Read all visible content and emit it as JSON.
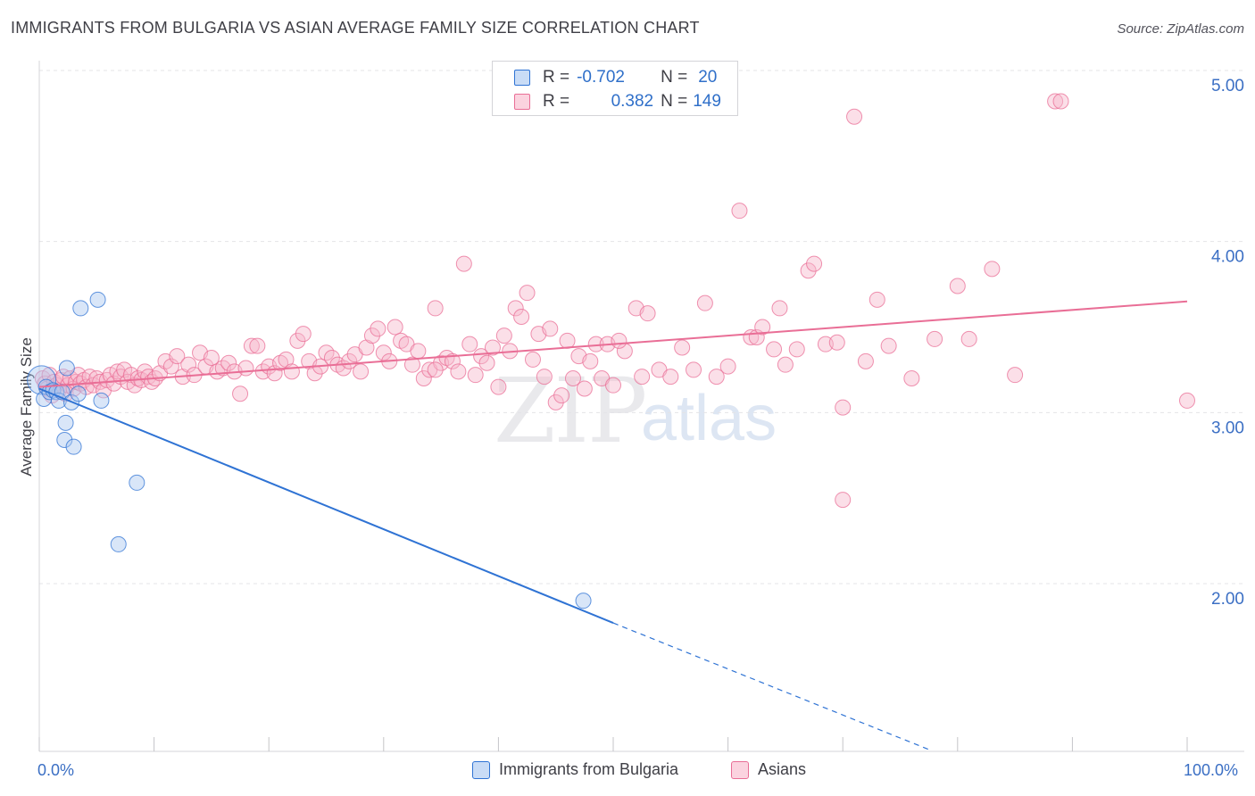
{
  "header": {
    "title": "IMMIGRANTS FROM BULGARIA VS ASIAN AVERAGE FAMILY SIZE CORRELATION CHART",
    "source": "Source: ZipAtlas.com"
  },
  "stats": {
    "rows": [
      {
        "r_label": "R =",
        "r_value": "-0.702",
        "n_label": "N =",
        "n_value": "20",
        "color": "#aac8f0"
      },
      {
        "r_label": "R =",
        "r_value": "0.382",
        "n_label": "N =",
        "n_value": "149",
        "color": "#f6b8cb"
      }
    ]
  },
  "watermark": {
    "zip": "ZIP",
    "atlas": "atlas"
  },
  "legend": {
    "items": [
      {
        "label": "Immigrants from Bulgaria",
        "color": "#aac8f0"
      },
      {
        "label": "Asians",
        "color": "#f6b8cb"
      }
    ]
  },
  "chart_data": {
    "type": "scatter",
    "xlabel": "",
    "ylabel": "Average Family Size",
    "x_tick_labels": [
      "0.0%",
      "100.0%"
    ],
    "y_tick_labels": [
      "2.00",
      "3.00",
      "4.00",
      "5.00"
    ],
    "xlim": [
      0,
      100
    ],
    "ylim": [
      1.1,
      5.1
    ],
    "grid": true,
    "legend_position": "bottom",
    "colors": {
      "blue": "#2f73d4",
      "pink": "#e96e96",
      "blue_fill": "#aac8f0",
      "pink_fill": "#f6b8cb"
    },
    "series": [
      {
        "name": "Immigrants from Bulgaria",
        "points": [
          [
            0.2,
            3.19
          ],
          [
            0.4,
            3.08
          ],
          [
            0.6,
            3.15
          ],
          [
            0.9,
            3.12
          ],
          [
            1.2,
            3.13
          ],
          [
            1.5,
            3.12
          ],
          [
            1.7,
            3.07
          ],
          [
            2.0,
            3.12
          ],
          [
            2.2,
            2.84
          ],
          [
            2.3,
            2.94
          ],
          [
            2.4,
            3.26
          ],
          [
            2.8,
            3.06
          ],
          [
            3.0,
            2.8
          ],
          [
            3.4,
            3.11
          ],
          [
            3.6,
            3.61
          ],
          [
            5.1,
            3.66
          ],
          [
            5.4,
            3.07
          ],
          [
            6.9,
            2.23
          ],
          [
            8.5,
            2.59
          ],
          [
            47.4,
            1.9
          ]
        ],
        "trend": {
          "x": [
            0,
            50
          ],
          "y": [
            3.14,
            1.77
          ]
        },
        "trend_dashed": {
          "x": [
            50,
            77.5
          ],
          "y": [
            1.77,
            1.03
          ]
        }
      },
      {
        "name": "Asians",
        "points": [
          [
            0.3,
            3.2
          ],
          [
            0.5,
            3.17
          ],
          [
            0.7,
            3.14
          ],
          [
            0.9,
            3.22
          ],
          [
            1.1,
            3.1
          ],
          [
            1.3,
            3.18
          ],
          [
            1.5,
            3.16
          ],
          [
            1.7,
            3.13
          ],
          [
            1.9,
            3.19
          ],
          [
            2.1,
            3.21
          ],
          [
            2.3,
            3.11
          ],
          [
            2.5,
            3.16
          ],
          [
            2.7,
            3.2
          ],
          [
            3.0,
            3.14
          ],
          [
            3.2,
            3.18
          ],
          [
            3.4,
            3.22
          ],
          [
            3.6,
            3.17
          ],
          [
            3.9,
            3.19
          ],
          [
            4.1,
            3.15
          ],
          [
            4.4,
            3.21
          ],
          [
            4.7,
            3.16
          ],
          [
            5.0,
            3.2
          ],
          [
            5.3,
            3.18
          ],
          [
            5.6,
            3.13
          ],
          [
            5.9,
            3.19
          ],
          [
            6.2,
            3.22
          ],
          [
            6.5,
            3.17
          ],
          [
            6.8,
            3.24
          ],
          [
            7.1,
            3.21
          ],
          [
            7.4,
            3.25
          ],
          [
            7.7,
            3.18
          ],
          [
            8.0,
            3.22
          ],
          [
            8.3,
            3.16
          ],
          [
            8.6,
            3.2
          ],
          [
            8.9,
            3.19
          ],
          [
            9.2,
            3.24
          ],
          [
            9.5,
            3.21
          ],
          [
            9.8,
            3.18
          ],
          [
            10.1,
            3.2
          ],
          [
            10.5,
            3.23
          ],
          [
            11.0,
            3.3
          ],
          [
            11.5,
            3.27
          ],
          [
            12.0,
            3.33
          ],
          [
            12.5,
            3.21
          ],
          [
            13.0,
            3.28
          ],
          [
            13.5,
            3.22
          ],
          [
            14.0,
            3.35
          ],
          [
            14.5,
            3.27
          ],
          [
            15.0,
            3.32
          ],
          [
            15.5,
            3.24
          ],
          [
            16.0,
            3.26
          ],
          [
            16.5,
            3.29
          ],
          [
            17.0,
            3.24
          ],
          [
            17.5,
            3.11
          ],
          [
            18.0,
            3.26
          ],
          [
            18.5,
            3.39
          ],
          [
            19.0,
            3.39
          ],
          [
            19.5,
            3.24
          ],
          [
            20.0,
            3.27
          ],
          [
            20.5,
            3.23
          ],
          [
            21.0,
            3.29
          ],
          [
            21.5,
            3.31
          ],
          [
            22.0,
            3.24
          ],
          [
            22.5,
            3.42
          ],
          [
            23.0,
            3.46
          ],
          [
            23.5,
            3.3
          ],
          [
            24.0,
            3.23
          ],
          [
            24.5,
            3.27
          ],
          [
            25.0,
            3.35
          ],
          [
            25.5,
            3.32
          ],
          [
            26.0,
            3.28
          ],
          [
            26.5,
            3.26
          ],
          [
            27.0,
            3.3
          ],
          [
            27.5,
            3.34
          ],
          [
            28.0,
            3.24
          ],
          [
            28.5,
            3.38
          ],
          [
            29.0,
            3.45
          ],
          [
            29.5,
            3.49
          ],
          [
            30.0,
            3.35
          ],
          [
            30.5,
            3.3
          ],
          [
            31.0,
            3.5
          ],
          [
            31.5,
            3.42
          ],
          [
            32.0,
            3.4
          ],
          [
            32.5,
            3.28
          ],
          [
            33.0,
            3.36
          ],
          [
            33.5,
            3.2
          ],
          [
            34.0,
            3.25
          ],
          [
            34.5,
            3.61
          ],
          [
            35.0,
            3.29
          ],
          [
            35.5,
            3.32
          ],
          [
            36.0,
            3.3
          ],
          [
            36.5,
            3.24
          ],
          [
            37.0,
            3.87
          ],
          [
            37.5,
            3.4
          ],
          [
            38.0,
            3.22
          ],
          [
            38.5,
            3.33
          ],
          [
            39.0,
            3.29
          ],
          [
            39.5,
            3.38
          ],
          [
            40.0,
            3.15
          ],
          [
            40.5,
            3.45
          ],
          [
            41.0,
            3.36
          ],
          [
            41.5,
            3.61
          ],
          [
            42.0,
            3.56
          ],
          [
            42.5,
            3.7
          ],
          [
            43.0,
            3.31
          ],
          [
            43.5,
            3.46
          ],
          [
            44.0,
            3.21
          ],
          [
            44.5,
            3.49
          ],
          [
            45.0,
            3.06
          ],
          [
            45.5,
            3.1
          ],
          [
            46.0,
            3.42
          ],
          [
            46.5,
            3.2
          ],
          [
            47.0,
            3.33
          ],
          [
            47.5,
            3.14
          ],
          [
            48.0,
            3.3
          ],
          [
            48.5,
            3.4
          ],
          [
            49.0,
            3.2
          ],
          [
            49.5,
            3.4
          ],
          [
            50.0,
            3.16
          ],
          [
            51.0,
            3.36
          ],
          [
            52.0,
            3.61
          ],
          [
            52.5,
            3.21
          ],
          [
            53.0,
            3.58
          ],
          [
            54.0,
            3.25
          ],
          [
            55.0,
            3.21
          ],
          [
            56.0,
            3.38
          ],
          [
            57.0,
            3.25
          ],
          [
            58.0,
            3.64
          ],
          [
            59.0,
            3.21
          ],
          [
            60.0,
            3.27
          ],
          [
            61.0,
            4.18
          ],
          [
            62.0,
            3.44
          ],
          [
            62.5,
            3.44
          ],
          [
            63.0,
            3.5
          ],
          [
            64.0,
            3.37
          ],
          [
            64.5,
            3.61
          ],
          [
            65.0,
            3.28
          ],
          [
            66.0,
            3.37
          ],
          [
            67.0,
            3.83
          ],
          [
            67.5,
            3.87
          ],
          [
            68.5,
            3.4
          ],
          [
            69.5,
            3.41
          ],
          [
            70.0,
            3.03
          ],
          [
            71.0,
            4.73
          ],
          [
            72.0,
            3.3
          ],
          [
            73.0,
            3.66
          ],
          [
            74.0,
            3.39
          ],
          [
            76.0,
            3.2
          ],
          [
            78.0,
            3.43
          ],
          [
            80.0,
            3.74
          ],
          [
            81.0,
            3.43
          ],
          [
            83.0,
            3.84
          ],
          [
            85.0,
            3.22
          ],
          [
            88.5,
            4.82
          ],
          [
            89.0,
            4.82
          ],
          [
            70.0,
            2.49
          ],
          [
            100.0,
            3.07
          ],
          [
            34.5,
            3.25
          ],
          [
            50.5,
            3.42
          ]
        ],
        "trend": {
          "x": [
            0,
            100
          ],
          "y": [
            3.15,
            3.65
          ]
        }
      }
    ]
  }
}
